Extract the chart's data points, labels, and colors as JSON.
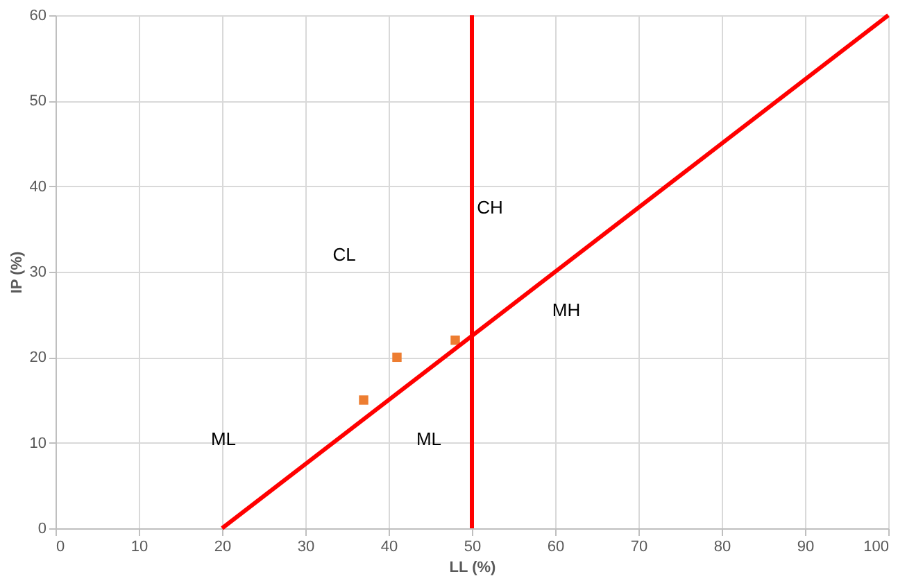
{
  "chart_data": {
    "type": "scatter",
    "xlabel": "LL (%)",
    "ylabel": "IP (%)",
    "x": [
      37,
      41,
      48
    ],
    "series": [
      {
        "color": "#ed7d31",
        "marker": "square",
        "values": [
          15,
          20,
          22
        ]
      },
      {
        "type": "line",
        "color": "#ff0000",
        "marker": "none",
        "x": [
          20,
          100
        ],
        "values": [
          0,
          60
        ]
      }
    ],
    "ref_lines": [
      {
        "axis": "x",
        "value": 50,
        "color": "#ff0000"
      }
    ],
    "annotations": [
      "CL",
      "CH",
      "MH",
      "ML",
      "ML"
    ],
    "xlim": [
      0,
      100
    ],
    "xticks": [
      0,
      10,
      20,
      30,
      40,
      50,
      60,
      70,
      80,
      90,
      100
    ],
    "ylim": [
      0,
      60
    ],
    "yticks": [
      0,
      10,
      20,
      30,
      40,
      50,
      60
    ],
    "grid": true
  }
}
